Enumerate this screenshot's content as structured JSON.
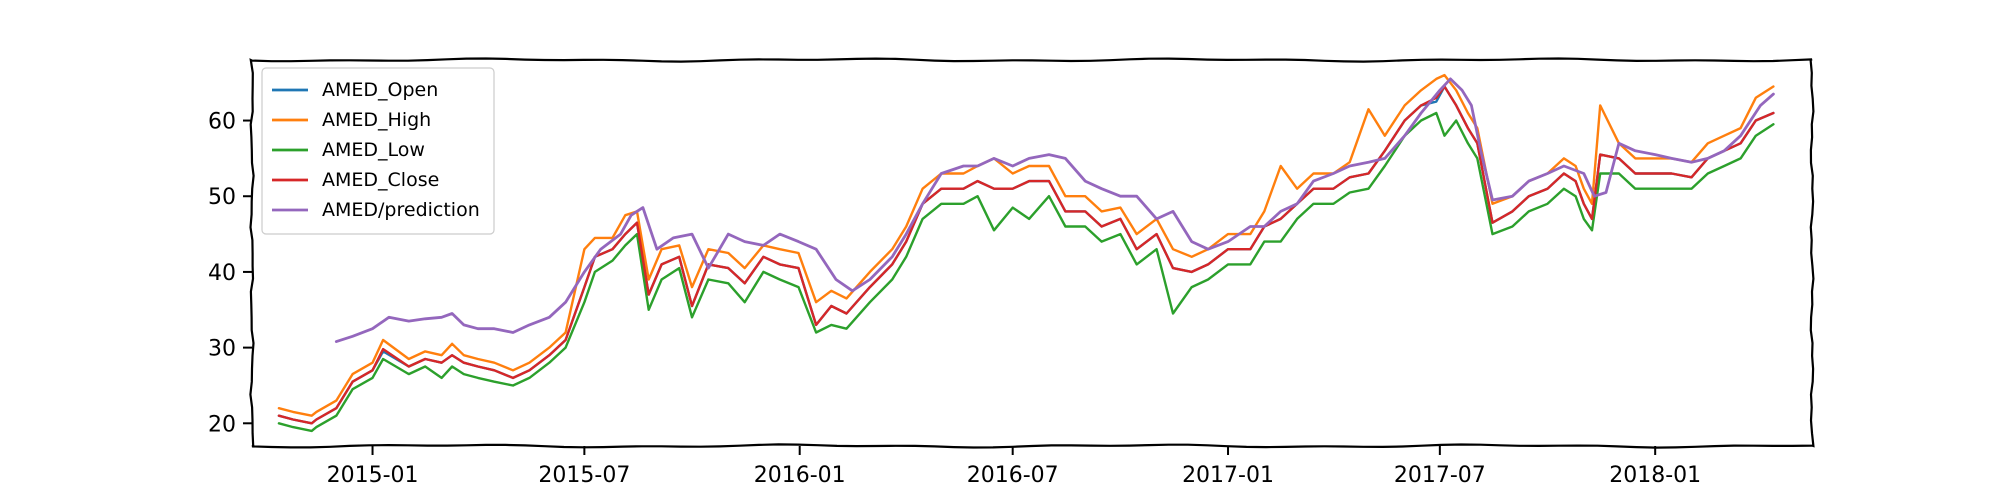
{
  "chart_data": {
    "type": "line",
    "title": "",
    "xlabel": "",
    "ylabel": "",
    "xlim": [
      "2014-09-20",
      "2018-05-15"
    ],
    "ylim": [
      17,
      68
    ],
    "x_ticks": [
      "2015-01",
      "2015-07",
      "2016-01",
      "2016-07",
      "2017-01",
      "2017-07",
      "2018-01"
    ],
    "y_ticks": [
      20,
      30,
      40,
      50,
      60
    ],
    "grid": false,
    "legend_position": "top-left",
    "series": [
      {
        "name": "AMED_Open",
        "color": "#1f77b4",
        "x": [
          "2014-10-13",
          "2014-10-25",
          "2014-11-10",
          "2014-11-14",
          "2014-12-01",
          "2014-12-15",
          "2015-01-01",
          "2015-01-10",
          "2015-02-01",
          "2015-02-15",
          "2015-03-01",
          "2015-03-10",
          "2015-03-20",
          "2015-04-01",
          "2015-04-15",
          "2015-05-01",
          "2015-05-15",
          "2015-06-01",
          "2015-06-15",
          "2015-07-01",
          "2015-07-10",
          "2015-07-25",
          "2015-08-05",
          "2015-08-15",
          "2015-08-25",
          "2015-09-05",
          "2015-09-20",
          "2015-10-01",
          "2015-10-15",
          "2015-11-01",
          "2015-11-15",
          "2015-12-01",
          "2015-12-15",
          "2015-12-31",
          "2016-01-15",
          "2016-01-28",
          "2016-02-10",
          "2016-03-01",
          "2016-03-20",
          "2016-04-01",
          "2016-04-15",
          "2016-05-01",
          "2016-05-20",
          "2016-06-01",
          "2016-06-15",
          "2016-07-01",
          "2016-07-15",
          "2016-08-01",
          "2016-08-15",
          "2016-09-01",
          "2016-09-15",
          "2016-10-01",
          "2016-10-15",
          "2016-11-01",
          "2016-11-15",
          "2016-12-01",
          "2016-12-15",
          "2017-01-01",
          "2017-01-20",
          "2017-02-01",
          "2017-02-15",
          "2017-03-01",
          "2017-03-15",
          "2017-04-01",
          "2017-04-15",
          "2017-05-01",
          "2017-05-15",
          "2017-06-01",
          "2017-06-15",
          "2017-06-28",
          "2017-07-05",
          "2017-07-15",
          "2017-07-25",
          "2017-08-02",
          "2017-08-15",
          "2017-09-01",
          "2017-09-15",
          "2017-10-01",
          "2017-10-15",
          "2017-10-25",
          "2017-11-01",
          "2017-11-08",
          "2017-11-15",
          "2017-12-01",
          "2017-12-15",
          "2018-01-01",
          "2018-01-15",
          "2018-02-01",
          "2018-02-15",
          "2018-03-01",
          "2018-03-15",
          "2018-03-28",
          "2018-04-12"
        ],
        "y": [
          21,
          20.5,
          20,
          20.5,
          22,
          25.5,
          27,
          29.5,
          27.5,
          28.5,
          28,
          29,
          28,
          27.5,
          27,
          26,
          27,
          29,
          31,
          38,
          42,
          43,
          45,
          46.5,
          37,
          41,
          42,
          35.5,
          41,
          40.5,
          38.5,
          42,
          41,
          40.5,
          33,
          35.5,
          34.5,
          38,
          41,
          44,
          49,
          51,
          51,
          52,
          51,
          51,
          52,
          52,
          48,
          48,
          46,
          47,
          43,
          45,
          40.5,
          40,
          41,
          43,
          43,
          46,
          47,
          49,
          51,
          51,
          52.5,
          53,
          56,
          60,
          62,
          62.5,
          64.5,
          62,
          59,
          57,
          46.5,
          48,
          50,
          51,
          53,
          52,
          49,
          47,
          55.5,
          55,
          53,
          53,
          53,
          52.5,
          55,
          56,
          57,
          60,
          61
        ]
      },
      {
        "name": "AMED_High",
        "color": "#ff7f0e",
        "x": [
          "2014-10-13",
          "2014-10-25",
          "2014-11-10",
          "2014-11-14",
          "2014-12-01",
          "2014-12-15",
          "2015-01-01",
          "2015-01-10",
          "2015-02-01",
          "2015-02-15",
          "2015-03-01",
          "2015-03-10",
          "2015-03-20",
          "2015-04-01",
          "2015-04-15",
          "2015-05-01",
          "2015-05-15",
          "2015-06-01",
          "2015-06-15",
          "2015-07-01",
          "2015-07-10",
          "2015-07-25",
          "2015-08-05",
          "2015-08-15",
          "2015-08-25",
          "2015-09-05",
          "2015-09-20",
          "2015-10-01",
          "2015-10-15",
          "2015-11-01",
          "2015-11-15",
          "2015-12-01",
          "2015-12-15",
          "2015-12-31",
          "2016-01-15",
          "2016-01-28",
          "2016-02-10",
          "2016-03-01",
          "2016-03-20",
          "2016-04-01",
          "2016-04-15",
          "2016-05-01",
          "2016-05-20",
          "2016-06-01",
          "2016-06-15",
          "2016-07-01",
          "2016-07-15",
          "2016-08-01",
          "2016-08-15",
          "2016-09-01",
          "2016-09-15",
          "2016-10-01",
          "2016-10-15",
          "2016-11-01",
          "2016-11-15",
          "2016-12-01",
          "2016-12-15",
          "2017-01-01",
          "2017-01-20",
          "2017-02-01",
          "2017-02-15",
          "2017-03-01",
          "2017-03-15",
          "2017-04-01",
          "2017-04-15",
          "2017-05-01",
          "2017-05-15",
          "2017-06-01",
          "2017-06-15",
          "2017-06-28",
          "2017-07-05",
          "2017-07-15",
          "2017-07-25",
          "2017-08-02",
          "2017-08-15",
          "2017-09-01",
          "2017-09-15",
          "2017-10-01",
          "2017-10-15",
          "2017-10-25",
          "2017-11-01",
          "2017-11-08",
          "2017-11-15",
          "2017-12-01",
          "2017-12-15",
          "2018-01-01",
          "2018-01-15",
          "2018-02-01",
          "2018-02-15",
          "2018-03-01",
          "2018-03-15",
          "2018-03-28",
          "2018-04-12"
        ],
        "y": [
          22,
          21.5,
          21,
          21.5,
          23,
          26.5,
          28,
          31,
          28.5,
          29.5,
          29,
          30.5,
          29,
          28.5,
          28,
          27,
          28,
          30,
          32,
          43,
          44.5,
          44.5,
          47.5,
          48,
          39,
          43,
          43.5,
          38,
          43,
          42.5,
          40.5,
          43.5,
          43,
          42.5,
          36,
          37.5,
          36.5,
          40,
          43,
          46,
          51,
          53,
          53,
          54,
          55,
          53,
          54,
          54,
          50,
          50,
          48,
          48.5,
          45,
          47,
          43,
          42,
          43,
          45,
          45,
          48,
          54,
          51,
          53,
          53,
          54.5,
          61.5,
          58,
          62,
          64,
          65.5,
          66,
          64,
          61,
          59,
          49,
          50,
          52,
          53,
          55,
          54,
          51,
          49,
          62,
          57,
          55,
          55,
          55,
          54.5,
          57,
          58,
          59,
          63,
          64.5
        ]
      },
      {
        "name": "AMED_Low",
        "color": "#2ca02c",
        "x": [
          "2014-10-13",
          "2014-10-25",
          "2014-11-10",
          "2014-11-14",
          "2014-12-01",
          "2014-12-15",
          "2015-01-01",
          "2015-01-10",
          "2015-02-01",
          "2015-02-15",
          "2015-03-01",
          "2015-03-10",
          "2015-03-20",
          "2015-04-01",
          "2015-04-15",
          "2015-05-01",
          "2015-05-15",
          "2015-06-01",
          "2015-06-15",
          "2015-07-01",
          "2015-07-10",
          "2015-07-25",
          "2015-08-05",
          "2015-08-15",
          "2015-08-25",
          "2015-09-05",
          "2015-09-20",
          "2015-10-01",
          "2015-10-15",
          "2015-11-01",
          "2015-11-15",
          "2015-12-01",
          "2015-12-15",
          "2015-12-31",
          "2016-01-15",
          "2016-01-28",
          "2016-02-10",
          "2016-03-01",
          "2016-03-20",
          "2016-04-01",
          "2016-04-15",
          "2016-05-01",
          "2016-05-20",
          "2016-06-01",
          "2016-06-15",
          "2016-07-01",
          "2016-07-15",
          "2016-08-01",
          "2016-08-15",
          "2016-09-01",
          "2016-09-15",
          "2016-10-01",
          "2016-10-15",
          "2016-11-01",
          "2016-11-15",
          "2016-12-01",
          "2016-12-15",
          "2017-01-01",
          "2017-01-20",
          "2017-02-01",
          "2017-02-15",
          "2017-03-01",
          "2017-03-15",
          "2017-04-01",
          "2017-04-15",
          "2017-05-01",
          "2017-05-15",
          "2017-06-01",
          "2017-06-15",
          "2017-06-28",
          "2017-07-05",
          "2017-07-15",
          "2017-07-25",
          "2017-08-02",
          "2017-08-15",
          "2017-09-01",
          "2017-09-15",
          "2017-10-01",
          "2017-10-15",
          "2017-10-25",
          "2017-11-01",
          "2017-11-08",
          "2017-11-15",
          "2017-12-01",
          "2017-12-15",
          "2018-01-01",
          "2018-01-15",
          "2018-02-01",
          "2018-02-15",
          "2018-03-01",
          "2018-03-15",
          "2018-03-28",
          "2018-04-12"
        ],
        "y": [
          20,
          19.5,
          19,
          19.5,
          21,
          24.5,
          26,
          28.5,
          26.5,
          27.5,
          26,
          27.5,
          26.5,
          26,
          25.5,
          25,
          26,
          28,
          30,
          36,
          40,
          41.5,
          43.5,
          45,
          35,
          39,
          40.5,
          34,
          39,
          38.5,
          36,
          40,
          39,
          38,
          32,
          33,
          32.5,
          36,
          39,
          42,
          47,
          49,
          49,
          50,
          45.5,
          48.5,
          47,
          50,
          46,
          46,
          44,
          45,
          41,
          43,
          34.5,
          38,
          39,
          41,
          41,
          44,
          44,
          47,
          49,
          49,
          50.5,
          51,
          54,
          58,
          60,
          61,
          58,
          60,
          57,
          55,
          45,
          46,
          48,
          49,
          51,
          50,
          47,
          45.5,
          53,
          53,
          51,
          51,
          51,
          51,
          53,
          54,
          55,
          58,
          59.5
        ]
      },
      {
        "name": "AMED_Close",
        "color": "#d62728",
        "x": [
          "2014-10-13",
          "2014-10-25",
          "2014-11-10",
          "2014-11-14",
          "2014-12-01",
          "2014-12-15",
          "2015-01-01",
          "2015-01-10",
          "2015-02-01",
          "2015-02-15",
          "2015-03-01",
          "2015-03-10",
          "2015-03-20",
          "2015-04-01",
          "2015-04-15",
          "2015-05-01",
          "2015-05-15",
          "2015-06-01",
          "2015-06-15",
          "2015-07-01",
          "2015-07-10",
          "2015-07-25",
          "2015-08-05",
          "2015-08-15",
          "2015-08-25",
          "2015-09-05",
          "2015-09-20",
          "2015-10-01",
          "2015-10-15",
          "2015-11-01",
          "2015-11-15",
          "2015-12-01",
          "2015-12-15",
          "2015-12-31",
          "2016-01-15",
          "2016-01-28",
          "2016-02-10",
          "2016-03-01",
          "2016-03-20",
          "2016-04-01",
          "2016-04-15",
          "2016-05-01",
          "2016-05-20",
          "2016-06-01",
          "2016-06-15",
          "2016-07-01",
          "2016-07-15",
          "2016-08-01",
          "2016-08-15",
          "2016-09-01",
          "2016-09-15",
          "2016-10-01",
          "2016-10-15",
          "2016-11-01",
          "2016-11-15",
          "2016-12-01",
          "2016-12-15",
          "2017-01-01",
          "2017-01-20",
          "2017-02-01",
          "2017-02-15",
          "2017-03-01",
          "2017-03-15",
          "2017-04-01",
          "2017-04-15",
          "2017-05-01",
          "2017-05-15",
          "2017-06-01",
          "2017-06-15",
          "2017-06-28",
          "2017-07-05",
          "2017-07-15",
          "2017-07-25",
          "2017-08-02",
          "2017-08-15",
          "2017-09-01",
          "2017-09-15",
          "2017-10-01",
          "2017-10-15",
          "2017-10-25",
          "2017-11-01",
          "2017-11-08",
          "2017-11-15",
          "2017-12-01",
          "2017-12-15",
          "2018-01-01",
          "2018-01-15",
          "2018-02-01",
          "2018-02-15",
          "2018-03-01",
          "2018-03-15",
          "2018-03-28",
          "2018-04-12"
        ],
        "y": [
          21,
          20.5,
          20,
          20.5,
          22,
          25.5,
          27,
          29.8,
          27.5,
          28.5,
          28,
          29,
          28,
          27.5,
          27,
          26,
          27,
          29,
          31,
          38,
          42,
          43,
          45,
          46.5,
          37,
          41,
          42,
          35.5,
          41,
          40.5,
          38.5,
          42,
          41,
          40.5,
          33,
          35.5,
          34.5,
          38,
          41,
          44,
          49,
          51,
          51,
          52,
          51,
          51,
          52,
          52,
          48,
          48,
          46,
          47,
          43,
          45,
          40.5,
          40,
          41,
          43,
          43,
          46,
          47,
          49,
          51,
          51,
          52.5,
          53,
          56,
          60,
          62,
          63,
          64.5,
          62,
          59,
          57,
          46.5,
          48,
          50,
          51,
          53,
          52,
          49,
          47,
          55.5,
          55,
          53,
          53,
          53,
          52.5,
          55,
          56,
          57,
          60,
          61
        ]
      },
      {
        "name": "AMED/prediction",
        "color": "#9467bd",
        "x": [
          "2014-12-01",
          "2014-12-15",
          "2015-01-01",
          "2015-01-15",
          "2015-02-01",
          "2015-02-15",
          "2015-03-01",
          "2015-03-10",
          "2015-03-20",
          "2015-04-01",
          "2015-04-15",
          "2015-05-01",
          "2015-05-15",
          "2015-06-01",
          "2015-06-15",
          "2015-07-01",
          "2015-07-15",
          "2015-08-01",
          "2015-08-10",
          "2015-08-20",
          "2015-09-01",
          "2015-09-15",
          "2015-10-01",
          "2015-10-15",
          "2015-11-01",
          "2015-11-15",
          "2015-12-01",
          "2015-12-15",
          "2015-12-31",
          "2016-01-15",
          "2016-02-01",
          "2016-02-15",
          "2016-03-01",
          "2016-03-20",
          "2016-04-01",
          "2016-04-15",
          "2016-05-01",
          "2016-05-20",
          "2016-06-01",
          "2016-06-15",
          "2016-07-01",
          "2016-07-15",
          "2016-08-01",
          "2016-08-15",
          "2016-09-01",
          "2016-09-15",
          "2016-10-01",
          "2016-10-15",
          "2016-11-01",
          "2016-11-15",
          "2016-12-01",
          "2016-12-15",
          "2017-01-01",
          "2017-01-20",
          "2017-02-01",
          "2017-02-15",
          "2017-03-01",
          "2017-03-15",
          "2017-04-01",
          "2017-04-15",
          "2017-05-01",
          "2017-05-15",
          "2017-06-01",
          "2017-06-15",
          "2017-07-01",
          "2017-07-10",
          "2017-07-20",
          "2017-07-28",
          "2017-08-05",
          "2017-08-15",
          "2017-09-01",
          "2017-09-15",
          "2017-10-01",
          "2017-10-15",
          "2017-11-01",
          "2017-11-10",
          "2017-11-20",
          "2017-12-01",
          "2017-12-15",
          "2018-01-01",
          "2018-01-15",
          "2018-02-01",
          "2018-02-15",
          "2018-03-01",
          "2018-03-15",
          "2018-04-01",
          "2018-04-12"
        ],
        "y": [
          30.8,
          31.5,
          32.5,
          34,
          33.5,
          33.8,
          34,
          34.5,
          33,
          32.5,
          32.5,
          32,
          33,
          34,
          36,
          40,
          43,
          45,
          47.5,
          48.5,
          43,
          44.5,
          45,
          40.5,
          45,
          44,
          43.5,
          45,
          44,
          43,
          39,
          37.5,
          39,
          42,
          45,
          49,
          53,
          54,
          54,
          55,
          54,
          55,
          55.5,
          55,
          52,
          51,
          50,
          50,
          47,
          48,
          44,
          43,
          44,
          46,
          46,
          48,
          49,
          52,
          53,
          54,
          54.5,
          55,
          58,
          61,
          64,
          65.5,
          64,
          62,
          56,
          49.5,
          50,
          52,
          53,
          54,
          53,
          50,
          50.5,
          57,
          56,
          55.5,
          55,
          54.5,
          55,
          56,
          58,
          62,
          63.5
        ]
      }
    ]
  }
}
